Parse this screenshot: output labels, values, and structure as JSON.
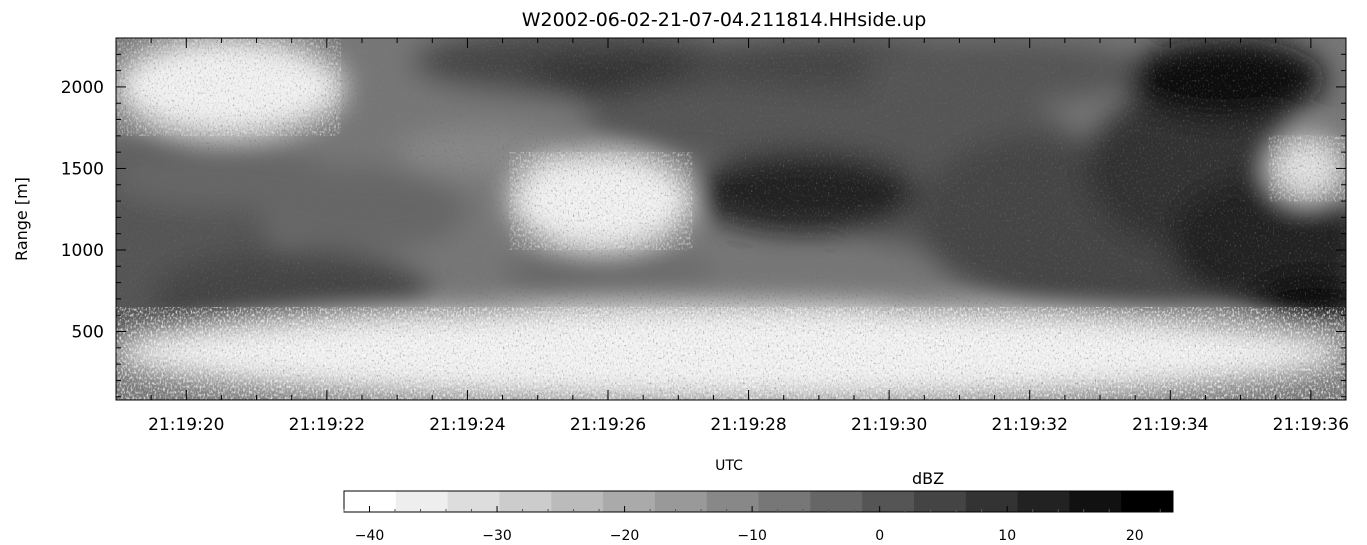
{
  "chart_data": [
    {
      "type": "heatmap",
      "title": "W2002-06-02-21-07-04.211814.HHside.up",
      "xlabel": "UTC",
      "ylabel": "Range [m]",
      "x_ticks": [
        "21:19:20",
        "21:19:22",
        "21:19:24",
        "21:19:26",
        "21:19:28",
        "21:19:30",
        "21:19:32",
        "21:19:34",
        "21:19:36"
      ],
      "x_tick_seconds": [
        20,
        22,
        24,
        26,
        28,
        30,
        32,
        34,
        36
      ],
      "xlim_seconds": [
        19.0,
        36.5
      ],
      "y_ticks": [
        500,
        1000,
        1500,
        2000
      ],
      "ylim": [
        80,
        2300
      ],
      "colormap": "grayscale (white = low, black = high)",
      "colorbar": {
        "label": "dBZ",
        "range": [
          -42,
          23
        ],
        "ticks": [
          -40,
          -30,
          -20,
          -10,
          0,
          10,
          20
        ],
        "tick_labels": [
          "−40",
          "−30",
          "−20",
          "−10",
          "0",
          "10",
          "20"
        ],
        "n_levels": 16
      },
      "features": [
        {
          "x_seconds": [
            19.0,
            36.5
          ],
          "y": [
            80,
            650
          ],
          "dbz_range": [
            -42,
            -30
          ]
        },
        {
          "x_seconds": [
            19.0,
            22.2
          ],
          "y": [
            1700,
            2300
          ],
          "dbz_range": [
            -42,
            -30
          ]
        },
        {
          "x_seconds": [
            24.6,
            27.2
          ],
          "y": [
            1000,
            1600
          ],
          "dbz_range": [
            -42,
            -30
          ]
        },
        {
          "x_seconds": [
            27.2,
            30.4
          ],
          "y": [
            1100,
            1600
          ],
          "dbz_range": [
            10,
            18
          ]
        },
        {
          "x_seconds": [
            33.4,
            36.2
          ],
          "y": [
            1800,
            2300
          ],
          "dbz_range": [
            12,
            22
          ]
        },
        {
          "x_seconds": [
            35.4,
            36.5
          ],
          "y": [
            1300,
            1700
          ],
          "dbz_range": [
            -40,
            -30
          ]
        }
      ]
    }
  ],
  "colors": {
    "background": "#ffffff",
    "axis": "#000000"
  }
}
